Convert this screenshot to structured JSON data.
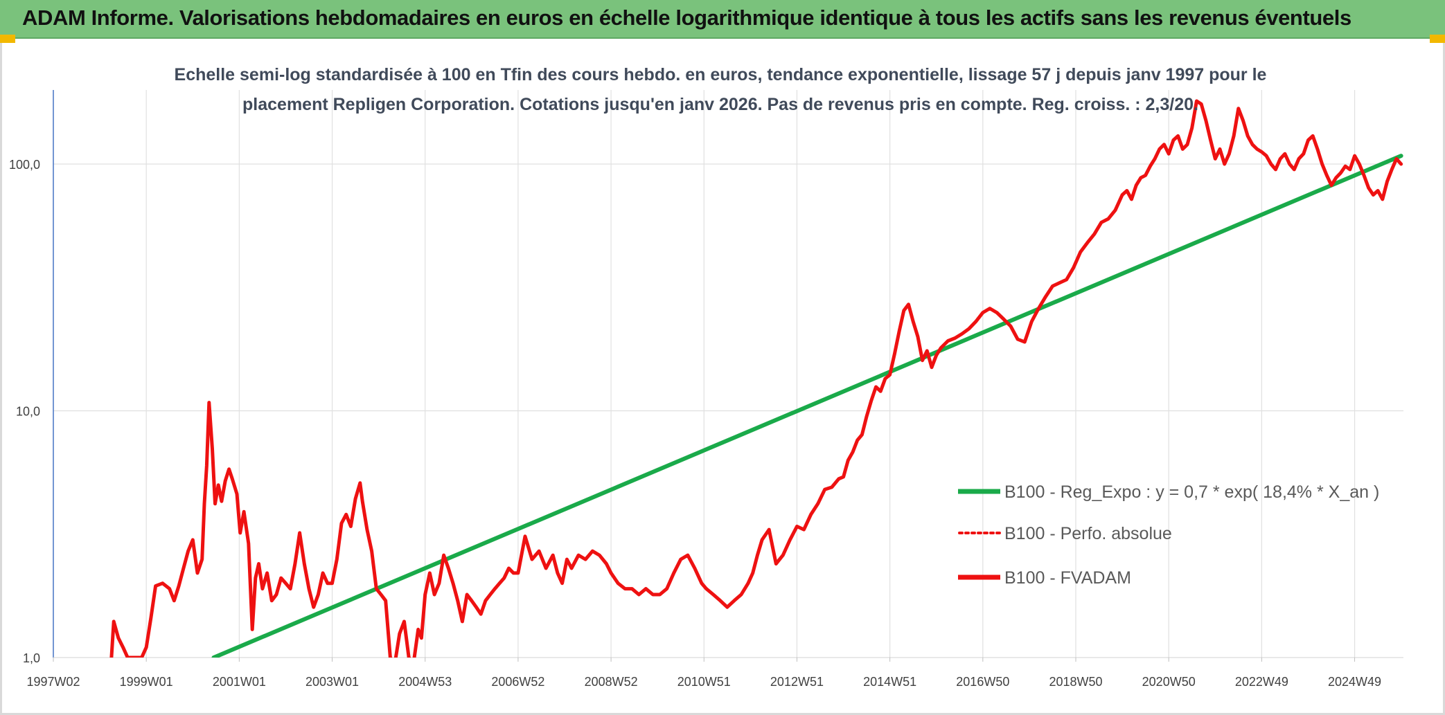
{
  "header": {
    "title": "ADAM Informe. Valorisations hebdomadaires en euros en échelle logarithmique identique à tous les actifs sans les revenus éventuels"
  },
  "colors": {
    "header_bg": "#7ac27c",
    "corner": "#f2b800",
    "fvadam": "#ee1111",
    "regression": "#1aaa4a",
    "grid": "#e0e0e0",
    "y_axis": "#4472c4"
  },
  "chart_data": {
    "type": "line",
    "title_lines": [
      "Echelle semi-log standardisée à 100 en Tfin des cours hebdo. en euros, tendance exponentielle, lissage 57 j depuis janv 1997 pour le",
      "placement Repligen Corporation. Cotations jusqu'en janv 2026. Pas de revenus pris en compte. Reg. croiss. : 2,3/20."
    ],
    "y_scale": "log",
    "ylim": [
      1,
      190
    ],
    "xlim": [
      1997.0,
      2026.05
    ],
    "y_ticks": [
      {
        "value": 1,
        "label": "1,0"
      },
      {
        "value": 10,
        "label": "10,0"
      },
      {
        "value": 100,
        "label": "100,0"
      }
    ],
    "x_ticks": [
      {
        "value": 1997.0,
        "label": "1997W02"
      },
      {
        "value": 1999.0,
        "label": "1999W01"
      },
      {
        "value": 2001.0,
        "label": "2001W01"
      },
      {
        "value": 2003.0,
        "label": "2003W01"
      },
      {
        "value": 2005.0,
        "label": "2004W53"
      },
      {
        "value": 2007.0,
        "label": "2006W52"
      },
      {
        "value": 2009.0,
        "label": "2008W52"
      },
      {
        "value": 2011.0,
        "label": "2010W51"
      },
      {
        "value": 2013.0,
        "label": "2012W51"
      },
      {
        "value": 2015.0,
        "label": "2014W51"
      },
      {
        "value": 2017.0,
        "label": "2016W50"
      },
      {
        "value": 2019.0,
        "label": "2018W50"
      },
      {
        "value": 2021.0,
        "label": "2020W50"
      },
      {
        "value": 2023.0,
        "label": "2022W49"
      },
      {
        "value": 2025.0,
        "label": "2024W49"
      }
    ],
    "grid": "vertical and horizontal",
    "legend_position": "right",
    "legend": [
      {
        "label": "B100 - Reg_Expo : y = 0,7 * exp( 18,4% *  X_an )",
        "style": "solid-green"
      },
      {
        "label": "B100 - Perfo. absolue",
        "style": "dotted-red"
      },
      {
        "label": "B100 - FVADAM",
        "style": "solid-red"
      }
    ],
    "series": [
      {
        "key": "regression",
        "style": "solid-green",
        "x": [
          2000.45,
          2026.0
        ],
        "y": [
          1.0,
          108.0
        ]
      },
      {
        "key": "fvadam",
        "style": "solid-red",
        "x": [
          1998.25,
          1998.3,
          1998.4,
          1998.5,
          1998.6,
          1998.9,
          1999.0,
          1999.1,
          1999.2,
          1999.35,
          1999.5,
          1999.6,
          1999.7,
          1999.8,
          1999.9,
          2000.0,
          2000.1,
          2000.2,
          2000.25,
          2000.3,
          2000.35,
          2000.42,
          2000.48,
          2000.55,
          2000.62,
          2000.7,
          2000.78,
          2000.85,
          2000.95,
          2001.02,
          2001.1,
          2001.2,
          2001.28,
          2001.35,
          2001.42,
          2001.5,
          2001.6,
          2001.7,
          2001.8,
          2001.9,
          2002.0,
          2002.1,
          2002.2,
          2002.3,
          2002.4,
          2002.5,
          2002.6,
          2002.7,
          2002.8,
          2002.9,
          2003.0,
          2003.1,
          2003.2,
          2003.3,
          2003.4,
          2003.5,
          2003.6,
          2003.65,
          2003.75,
          2003.85,
          2003.95,
          2004.05,
          2004.15,
          2004.25,
          2004.35,
          2004.45,
          2004.55,
          2004.65,
          2004.75,
          2004.85,
          2004.92,
          2005.0,
          2005.1,
          2005.2,
          2005.3,
          2005.4,
          2005.5,
          2005.6,
          2005.7,
          2005.8,
          2005.9,
          2006.0,
          2006.1,
          2006.2,
          2006.3,
          2006.4,
          2006.5,
          2006.6,
          2006.7,
          2006.8,
          2006.9,
          2007.0,
          2007.15,
          2007.3,
          2007.45,
          2007.6,
          2007.75,
          2007.85,
          2007.95,
          2008.05,
          2008.15,
          2008.3,
          2008.45,
          2008.6,
          2008.75,
          2008.9,
          2009.0,
          2009.15,
          2009.3,
          2009.45,
          2009.6,
          2009.75,
          2009.9,
          2010.05,
          2010.2,
          2010.35,
          2010.5,
          2010.65,
          2010.8,
          2010.95,
          2011.05,
          2011.2,
          2011.35,
          2011.5,
          2011.65,
          2011.8,
          2011.95,
          2012.05,
          2012.15,
          2012.25,
          2012.4,
          2012.55,
          2012.7,
          2012.85,
          2013.0,
          2013.15,
          2013.3,
          2013.45,
          2013.6,
          2013.75,
          2013.9,
          2014.0,
          2014.1,
          2014.2,
          2014.3,
          2014.4,
          2014.5,
          2014.6,
          2014.7,
          2014.8,
          2014.9,
          2015.0,
          2015.1,
          2015.2,
          2015.3,
          2015.4,
          2015.5,
          2015.6,
          2015.7,
          2015.8,
          2015.9,
          2016.0,
          2016.1,
          2016.25,
          2016.4,
          2016.55,
          2016.7,
          2016.85,
          2017.0,
          2017.15,
          2017.3,
          2017.45,
          2017.6,
          2017.75,
          2017.9,
          2018.05,
          2018.2,
          2018.35,
          2018.5,
          2018.65,
          2018.8,
          2018.95,
          2019.1,
          2019.25,
          2019.4,
          2019.55,
          2019.7,
          2019.85,
          2020.0,
          2020.1,
          2020.2,
          2020.3,
          2020.4,
          2020.5,
          2020.6,
          2020.7,
          2020.8,
          2020.9,
          2021.0,
          2021.1,
          2021.2,
          2021.3,
          2021.4,
          2021.5,
          2021.6,
          2021.7,
          2021.8,
          2021.9,
          2022.0,
          2022.1,
          2022.2,
          2022.3,
          2022.4,
          2022.5,
          2022.6,
          2022.7,
          2022.8,
          2022.9,
          2023.0,
          2023.1,
          2023.2,
          2023.3,
          2023.4,
          2023.5,
          2023.6,
          2023.7,
          2023.8,
          2023.9,
          2024.0,
          2024.1,
          2024.2,
          2024.3,
          2024.4,
          2024.5,
          2024.6,
          2024.7,
          2024.8,
          2024.9,
          2025.0,
          2025.1,
          2025.2,
          2025.3,
          2025.4,
          2025.5,
          2025.6,
          2025.7,
          2025.8,
          2025.9,
          2026.0
        ],
        "y": [
          1.0,
          1.4,
          1.2,
          1.1,
          1.0,
          1.0,
          1.1,
          1.45,
          1.95,
          2.0,
          1.9,
          1.7,
          1.95,
          2.3,
          2.7,
          3.0,
          2.2,
          2.5,
          4.2,
          6.0,
          10.8,
          7.0,
          4.2,
          5.0,
          4.3,
          5.2,
          5.8,
          5.3,
          4.6,
          3.2,
          3.9,
          2.9,
          1.3,
          2.1,
          2.4,
          1.9,
          2.2,
          1.7,
          1.8,
          2.1,
          2.0,
          1.9,
          2.4,
          3.2,
          2.4,
          1.9,
          1.6,
          1.8,
          2.2,
          2.0,
          2.0,
          2.5,
          3.5,
          3.8,
          3.4,
          4.4,
          5.1,
          4.3,
          3.3,
          2.7,
          1.9,
          1.8,
          1.7,
          1.0,
          0.95,
          1.25,
          1.4,
          1.0,
          0.95,
          1.3,
          1.2,
          1.8,
          2.2,
          1.8,
          2.0,
          2.6,
          2.3,
          2.0,
          1.7,
          1.4,
          1.8,
          1.7,
          1.6,
          1.5,
          1.7,
          1.8,
          1.9,
          2.0,
          2.1,
          2.3,
          2.2,
          2.2,
          3.1,
          2.5,
          2.7,
          2.3,
          2.6,
          2.2,
          2.0,
          2.5,
          2.3,
          2.6,
          2.5,
          2.7,
          2.6,
          2.4,
          2.2,
          2.0,
          1.9,
          1.9,
          1.8,
          1.9,
          1.8,
          1.8,
          1.9,
          2.2,
          2.5,
          2.6,
          2.3,
          2.0,
          1.9,
          1.8,
          1.7,
          1.6,
          1.7,
          1.8,
          2.0,
          2.2,
          2.6,
          3.0,
          3.3,
          2.4,
          2.6,
          3.0,
          3.4,
          3.3,
          3.8,
          4.2,
          4.8,
          4.9,
          5.3,
          5.4,
          6.3,
          6.8,
          7.6,
          8.0,
          9.5,
          11.0,
          12.5,
          12.0,
          13.5,
          14.0,
          17.0,
          21.0,
          25.5,
          27.0,
          23.0,
          20.0,
          16.0,
          17.5,
          15.0,
          16.8,
          18.0,
          19.2,
          19.7,
          20.5,
          21.5,
          23.0,
          25.0,
          26.0,
          25.0,
          23.5,
          22.0,
          19.5,
          19.0,
          23.0,
          26.0,
          29.0,
          32.0,
          33.0,
          34.0,
          38.0,
          44.0,
          48.0,
          52.0,
          58.0,
          60.0,
          65.0,
          75.0,
          78.0,
          72.0,
          82.0,
          88.0,
          90.0,
          98.0,
          105.0,
          115.0,
          120.0,
          110.0,
          125.0,
          130.0,
          115.0,
          120.0,
          140.0,
          180.0,
          175.0,
          150.0,
          125.0,
          105.0,
          115.0,
          100.0,
          110.0,
          130.0,
          168.0,
          150.0,
          130.0,
          120.0,
          115.0,
          112.0,
          108.0,
          100.0,
          95.0,
          105.0,
          110.0,
          100.0,
          95.0,
          105.0,
          110.0,
          125.0,
          130.0,
          115.0,
          100.0,
          90.0,
          82.0,
          88.0,
          92.0,
          98.0,
          95.0,
          108.0,
          100.0,
          90.0,
          80.0,
          75.0,
          78.0,
          72.0,
          85.0,
          95.0,
          105.0,
          100.0
        ]
      }
    ]
  }
}
